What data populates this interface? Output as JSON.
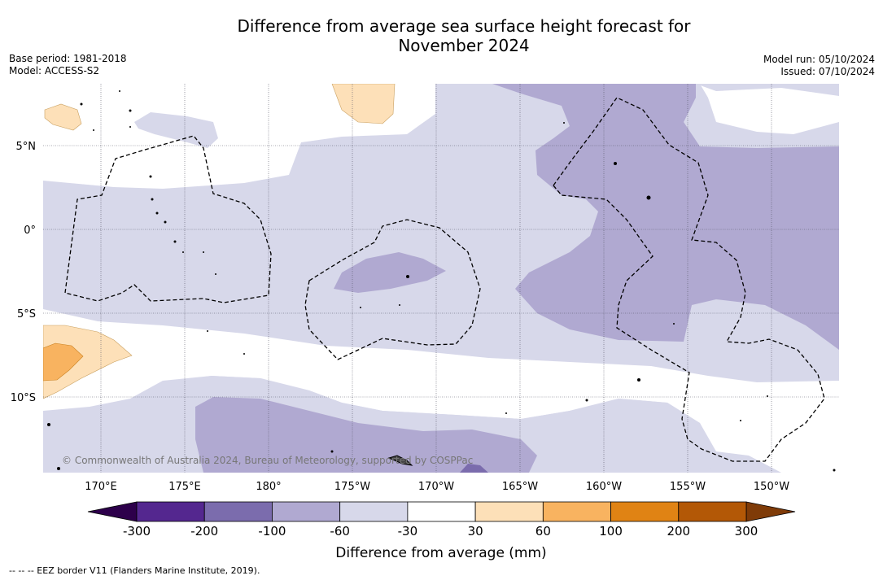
{
  "title_line1": "Difference from average sea surface height forecast for",
  "title_line2": "November 2024",
  "base_period": "Base period: 1981-2018",
  "model": "Model: ACCESS-S2",
  "model_run": "Model run: 05/10/2024",
  "issued": "Issued: 07/10/2024",
  "copyright": "© Commonwealth of Australia 2024, Bureau of Meteorology, supported by COSPPac",
  "map": {
    "lon_labels": [
      "170°E",
      "175°E",
      "180°",
      "175°W",
      "170°W",
      "165°W",
      "160°W",
      "155°W",
      "150°W"
    ],
    "lat_labels": [
      "5°N",
      "0°",
      "5°S",
      "10°S"
    ]
  },
  "colorbar": {
    "label": "Difference from average (mm)",
    "ticks": [
      "-300",
      "-200",
      "-100",
      "-60",
      "-30",
      "30",
      "60",
      "100",
      "200",
      "300"
    ],
    "colors": [
      "#54278f",
      "#7b6cad",
      "#b0a9d1",
      "#d7d8ea",
      "#ffffff",
      "#fde0b8",
      "#f8b360",
      "#e08314",
      "#b35806"
    ],
    "under_color": "#2d004b",
    "over_color": "#7f3b08"
  },
  "colors": {
    "land": "#ffffff",
    "coast": "#000000",
    "grid": "#555566"
  },
  "footer": "-- -- -- EEZ border V11 (Flanders Marine Institute, 2019)."
}
